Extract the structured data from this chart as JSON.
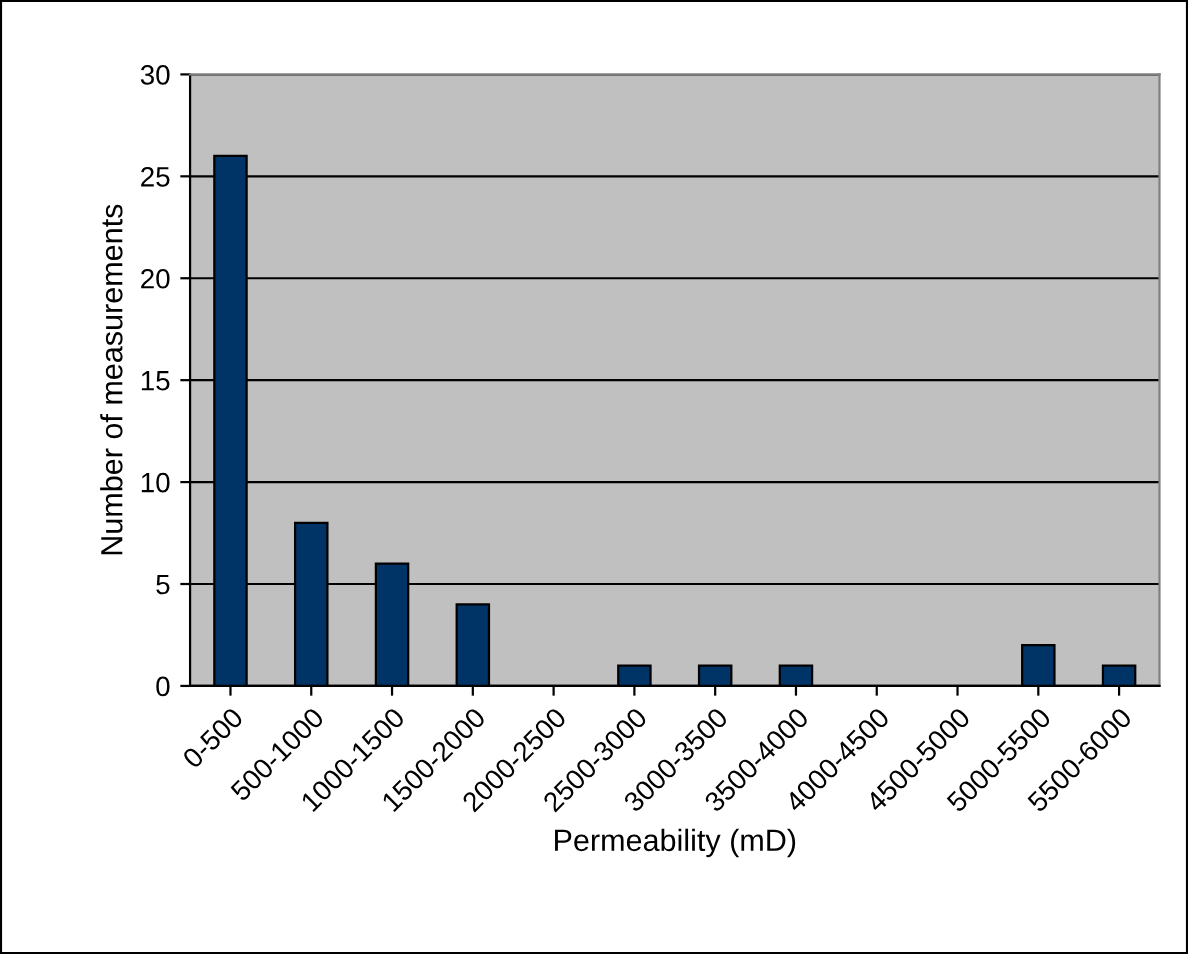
{
  "chart_data": {
    "type": "bar",
    "xlabel": "Permeability (mD)",
    "ylabel": "Number of measurements",
    "categories": [
      "0-500",
      "500-1000",
      "1000-1500",
      "1500-2000",
      "2000-2500",
      "2500-3000",
      "3000-3500",
      "3500-4000",
      "4000-4500",
      "4500-5000",
      "5000-5500",
      "5500-6000"
    ],
    "values": [
      26,
      8,
      6,
      4,
      0,
      1,
      1,
      1,
      0,
      0,
      2,
      1
    ],
    "color": "#003366",
    "ylim": [
      0,
      30
    ],
    "yticks": [
      0,
      5,
      10,
      15,
      20,
      25,
      30
    ],
    "grid": "y"
  }
}
